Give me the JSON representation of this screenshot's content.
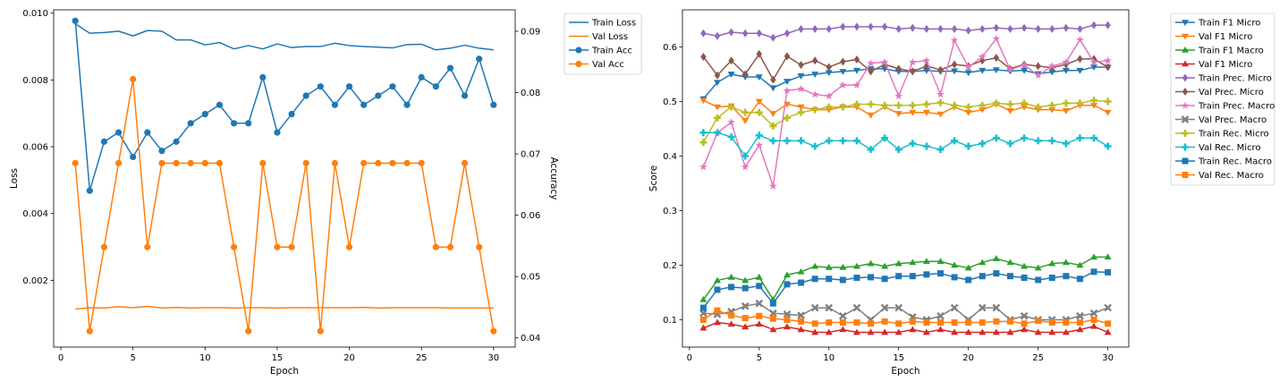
{
  "chart_data": [
    {
      "type": "line",
      "xlabel": "Epoch",
      "ylabel": "Loss",
      "y2label": "Accuracy",
      "xlim": [
        -0.5,
        31.5
      ],
      "ylim": [
        0.0,
        0.0101
      ],
      "y2lim": [
        0.0385,
        0.0935
      ],
      "xticks": [
        0,
        5,
        10,
        15,
        20,
        25,
        30
      ],
      "yticks": [
        0.002,
        0.004,
        0.006,
        0.008,
        0.01
      ],
      "ytick_labels": [
        "0.002",
        "0.004",
        "0.006",
        "0.008",
        "0.010"
      ],
      "y2ticks": [
        0.04,
        0.05,
        0.06,
        0.07,
        0.08,
        0.09
      ],
      "y2tick_labels": [
        "0.04",
        "0.05",
        "0.06",
        "0.07",
        "0.08",
        "0.09"
      ],
      "legend": "outside-right-top",
      "x": [
        1,
        2,
        3,
        4,
        5,
        6,
        7,
        8,
        9,
        10,
        11,
        12,
        13,
        14,
        15,
        16,
        17,
        18,
        19,
        20,
        21,
        22,
        23,
        24,
        25,
        26,
        27,
        28,
        29,
        30
      ],
      "series": [
        {
          "name": "Train Loss",
          "axis": "left",
          "color": "#1f77b4",
          "marker": "none",
          "values": [
            0.00968,
            0.0094,
            0.00942,
            0.00946,
            0.00932,
            0.00948,
            0.00946,
            0.0092,
            0.0092,
            0.00905,
            0.00912,
            0.00893,
            0.00903,
            0.00893,
            0.00908,
            0.00897,
            0.009,
            0.009,
            0.0091,
            0.00903,
            0.009,
            0.00898,
            0.00896,
            0.00906,
            0.00907,
            0.0089,
            0.00895,
            0.00904,
            0.00895,
            0.0089
          ]
        },
        {
          "name": "Val Loss",
          "axis": "left",
          "color": "#ff7f0e",
          "marker": "none",
          "values": [
            0.00114,
            0.00118,
            0.00117,
            0.00121,
            0.00118,
            0.00122,
            0.00117,
            0.00119,
            0.00117,
            0.00118,
            0.00118,
            0.00117,
            0.00118,
            0.00118,
            0.00117,
            0.00118,
            0.00118,
            0.00118,
            0.00118,
            0.00118,
            0.00119,
            0.00117,
            0.00118,
            0.00118,
            0.00118,
            0.00118,
            0.00117,
            0.00117,
            0.00117,
            0.00117
          ]
        },
        {
          "name": "Train Acc",
          "axis": "right",
          "color": "#1f77b4",
          "marker": "circle",
          "values": [
            0.0917,
            0.064,
            0.072,
            0.0735,
            0.0695,
            0.0735,
            0.0705,
            0.072,
            0.075,
            0.0765,
            0.078,
            0.075,
            0.075,
            0.0825,
            0.0735,
            0.0765,
            0.0795,
            0.081,
            0.078,
            0.081,
            0.078,
            0.0795,
            0.081,
            0.078,
            0.0825,
            0.081,
            0.084,
            0.0795,
            0.0855,
            0.078
          ]
        },
        {
          "name": "Val Acc",
          "axis": "right",
          "color": "#ff7f0e",
          "marker": "circle",
          "values": [
            0.0685,
            0.0411,
            0.0548,
            0.0685,
            0.0822,
            0.0548,
            0.0685,
            0.0685,
            0.0685,
            0.0685,
            0.0685,
            0.0548,
            0.0411,
            0.0685,
            0.0548,
            0.0548,
            0.0685,
            0.0411,
            0.0685,
            0.0548,
            0.0685,
            0.0685,
            0.0685,
            0.0685,
            0.0685,
            0.0548,
            0.0548,
            0.0685,
            0.0548,
            0.0411
          ]
        }
      ]
    },
    {
      "type": "line",
      "xlabel": "Epoch",
      "ylabel": "Score",
      "xlim": [
        -0.5,
        31.5
      ],
      "ylim": [
        0.05,
        0.668
      ],
      "xticks": [
        0,
        5,
        10,
        15,
        20,
        25,
        30
      ],
      "yticks": [
        0.1,
        0.2,
        0.3,
        0.4,
        0.5,
        0.6
      ],
      "ytick_labels": [
        "0.1",
        "0.2",
        "0.3",
        "0.4",
        "0.5",
        "0.6"
      ],
      "legend": "outside-right-top",
      "x": [
        1,
        2,
        3,
        4,
        5,
        6,
        7,
        8,
        9,
        10,
        11,
        12,
        13,
        14,
        15,
        16,
        17,
        18,
        19,
        20,
        21,
        22,
        23,
        24,
        25,
        26,
        27,
        28,
        29,
        30
      ],
      "series": [
        {
          "name": "Train F1 Micro",
          "color": "#1f77b4",
          "marker": "tri-down",
          "values": [
            0.505,
            0.535,
            0.55,
            0.545,
            0.545,
            0.525,
            0.537,
            0.547,
            0.55,
            0.553,
            0.555,
            0.557,
            0.56,
            0.56,
            0.555,
            0.555,
            0.557,
            0.555,
            0.556,
            0.553,
            0.557,
            0.558,
            0.556,
            0.557,
            0.551,
            0.554,
            0.557,
            0.557,
            0.563,
            0.563
          ]
        },
        {
          "name": "Val F1 Micro",
          "color": "#ff7f0e",
          "marker": "tri-down",
          "values": [
            0.502,
            0.49,
            0.492,
            0.465,
            0.5,
            0.478,
            0.495,
            0.49,
            0.485,
            0.485,
            0.49,
            0.49,
            0.475,
            0.49,
            0.478,
            0.48,
            0.48,
            0.477,
            0.49,
            0.48,
            0.485,
            0.495,
            0.483,
            0.49,
            0.485,
            0.485,
            0.483,
            0.493,
            0.493,
            0.48
          ]
        },
        {
          "name": "Train F1 Macro",
          "color": "#2ca02c",
          "marker": "tri-up",
          "values": [
            0.137,
            0.172,
            0.178,
            0.172,
            0.178,
            0.137,
            0.182,
            0.188,
            0.198,
            0.196,
            0.196,
            0.198,
            0.203,
            0.198,
            0.203,
            0.205,
            0.207,
            0.207,
            0.2,
            0.195,
            0.205,
            0.212,
            0.205,
            0.198,
            0.195,
            0.203,
            0.205,
            0.2,
            0.215,
            0.215
          ]
        },
        {
          "name": "Val F1 Micro",
          "color": "#d62728",
          "marker": "tri-up",
          "values": [
            0.085,
            0.095,
            0.092,
            0.087,
            0.092,
            0.082,
            0.087,
            0.082,
            0.077,
            0.077,
            0.082,
            0.077,
            0.077,
            0.077,
            0.077,
            0.082,
            0.077,
            0.082,
            0.077,
            0.077,
            0.077,
            0.077,
            0.077,
            0.082,
            0.077,
            0.077,
            0.077,
            0.082,
            0.088,
            0.077
          ]
        },
        {
          "name": "Train Prec. Micro",
          "color": "#9467bd",
          "marker": "diamond",
          "values": [
            0.625,
            0.62,
            0.627,
            0.625,
            0.625,
            0.617,
            0.625,
            0.633,
            0.633,
            0.633,
            0.637,
            0.637,
            0.637,
            0.637,
            0.633,
            0.635,
            0.633,
            0.633,
            0.633,
            0.63,
            0.633,
            0.635,
            0.633,
            0.635,
            0.633,
            0.633,
            0.635,
            0.633,
            0.64,
            0.64
          ]
        },
        {
          "name": "Val Prec. Micro",
          "color": "#8c564b",
          "marker": "diamond",
          "values": [
            0.582,
            0.548,
            0.575,
            0.55,
            0.587,
            0.54,
            0.583,
            0.567,
            0.575,
            0.563,
            0.573,
            0.577,
            0.555,
            0.568,
            0.56,
            0.555,
            0.565,
            0.558,
            0.568,
            0.565,
            0.575,
            0.58,
            0.56,
            0.568,
            0.565,
            0.562,
            0.568,
            0.578,
            0.578,
            0.563
          ]
        },
        {
          "name": "Train Prec. Macro",
          "color": "#e377c2",
          "marker": "star",
          "values": [
            0.38,
            0.443,
            0.462,
            0.38,
            0.42,
            0.345,
            0.52,
            0.523,
            0.513,
            0.51,
            0.53,
            0.53,
            0.57,
            0.572,
            0.51,
            0.572,
            0.575,
            0.513,
            0.612,
            0.563,
            0.582,
            0.615,
            0.558,
            0.567,
            0.548,
            0.565,
            0.572,
            0.613,
            0.572,
            0.575
          ]
        },
        {
          "name": "Val Prec. Macro",
          "color": "#7f7f7f",
          "marker": "x",
          "values": [
            0.112,
            0.11,
            0.115,
            0.125,
            0.13,
            0.112,
            0.11,
            0.108,
            0.122,
            0.122,
            0.107,
            0.122,
            0.1,
            0.122,
            0.122,
            0.105,
            0.1,
            0.107,
            0.122,
            0.1,
            0.122,
            0.122,
            0.1,
            0.107,
            0.1,
            0.1,
            0.1,
            0.107,
            0.112,
            0.122
          ]
        },
        {
          "name": "Train Rec. Micro",
          "color": "#bcbd22",
          "marker": "plus",
          "values": [
            0.425,
            0.47,
            0.49,
            0.48,
            0.48,
            0.455,
            0.47,
            0.48,
            0.485,
            0.49,
            0.49,
            0.495,
            0.495,
            0.493,
            0.493,
            0.493,
            0.495,
            0.498,
            0.493,
            0.49,
            0.493,
            0.497,
            0.495,
            0.497,
            0.49,
            0.493,
            0.497,
            0.497,
            0.502,
            0.5
          ]
        },
        {
          "name": "Val Rec. Micro",
          "color": "#17becf",
          "marker": "plus",
          "values": [
            0.443,
            0.443,
            0.435,
            0.4,
            0.438,
            0.428,
            0.428,
            0.428,
            0.418,
            0.428,
            0.428,
            0.428,
            0.412,
            0.433,
            0.412,
            0.423,
            0.418,
            0.412,
            0.428,
            0.418,
            0.423,
            0.433,
            0.423,
            0.433,
            0.428,
            0.428,
            0.423,
            0.433,
            0.433,
            0.418
          ]
        },
        {
          "name": "Train Rec. Macro",
          "color": "#1f77b4",
          "marker": "square",
          "values": [
            0.122,
            0.155,
            0.16,
            0.158,
            0.162,
            0.13,
            0.165,
            0.168,
            0.175,
            0.175,
            0.173,
            0.177,
            0.178,
            0.175,
            0.18,
            0.18,
            0.183,
            0.185,
            0.178,
            0.173,
            0.18,
            0.185,
            0.18,
            0.177,
            0.173,
            0.177,
            0.18,
            0.175,
            0.188,
            0.187
          ]
        },
        {
          "name": "Val Rec. Macro",
          "color": "#ff7f0e",
          "marker": "square",
          "values": [
            0.1,
            0.117,
            0.108,
            0.103,
            0.107,
            0.102,
            0.1,
            0.097,
            0.093,
            0.095,
            0.095,
            0.095,
            0.093,
            0.097,
            0.093,
            0.097,
            0.095,
            0.095,
            0.095,
            0.095,
            0.095,
            0.097,
            0.097,
            0.093,
            0.098,
            0.095,
            0.095,
            0.095,
            0.1,
            0.093
          ]
        }
      ]
    }
  ]
}
